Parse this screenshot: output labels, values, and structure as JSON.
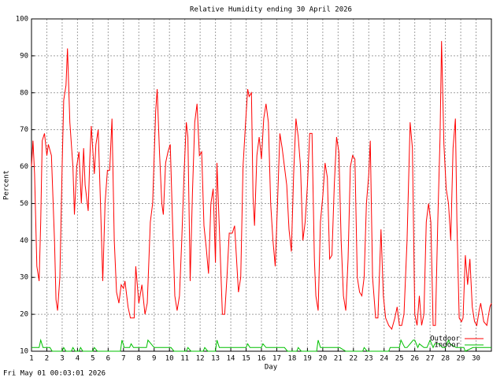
{
  "chart_data": {
    "type": "line",
    "title": "Relative Humidity ending 30 April 2026",
    "xlabel": "Day",
    "ylabel": "Percent",
    "footer": "Fri May 01 00:03:01 2026",
    "xlim": [
      1,
      31
    ],
    "xticks": [
      1,
      2,
      3,
      4,
      5,
      6,
      7,
      8,
      9,
      10,
      11,
      12,
      13,
      14,
      15,
      16,
      17,
      18,
      19,
      20,
      21,
      22,
      23,
      24,
      25,
      26,
      27,
      28,
      29,
      30
    ],
    "ylim": [
      10,
      100
    ],
    "yticks": [
      10,
      20,
      30,
      40,
      50,
      60,
      70,
      80,
      90,
      100
    ],
    "grid": true,
    "legend": "lower right",
    "series": [
      {
        "name": "Outdoor",
        "color": "#ff0000",
        "x": [
          1.0,
          1.1,
          1.2,
          1.35,
          1.5,
          1.6,
          1.7,
          1.85,
          2.0,
          2.1,
          2.3,
          2.5,
          2.6,
          2.7,
          2.85,
          3.0,
          3.1,
          3.25,
          3.35,
          3.5,
          3.7,
          3.8,
          3.95,
          4.1,
          4.25,
          4.4,
          4.5,
          4.7,
          4.8,
          4.9,
          5.1,
          5.2,
          5.35,
          5.5,
          5.65,
          5.8,
          5.95,
          6.1,
          6.25,
          6.4,
          6.55,
          6.7,
          6.85,
          7.0,
          7.1,
          7.3,
          7.45,
          7.7,
          7.8,
          8.0,
          8.2,
          8.4,
          8.55,
          8.75,
          8.9,
          9.1,
          9.2,
          9.35,
          9.5,
          9.6,
          9.75,
          9.9,
          10.05,
          10.2,
          10.35,
          10.5,
          10.65,
          10.8,
          10.95,
          11.1,
          11.2,
          11.35,
          11.5,
          11.65,
          11.8,
          11.95,
          12.1,
          12.25,
          12.4,
          12.55,
          12.7,
          12.85,
          13.0,
          13.1,
          13.3,
          13.45,
          13.6,
          13.75,
          13.9,
          14.1,
          14.25,
          14.4,
          14.5,
          14.65,
          14.8,
          14.95,
          15.1,
          15.2,
          15.35,
          15.45,
          15.55,
          15.7,
          15.85,
          16.0,
          16.15,
          16.3,
          16.45,
          16.6,
          16.75,
          16.9,
          17.05,
          17.2,
          17.35,
          17.5,
          17.65,
          17.8,
          17.95,
          18.1,
          18.25,
          18.4,
          18.55,
          18.7,
          18.85,
          19.0,
          19.15,
          19.3,
          19.45,
          19.55,
          19.7,
          19.85,
          20.0,
          20.15,
          20.3,
          20.45,
          20.6,
          20.75,
          20.9,
          21.05,
          21.2,
          21.35,
          21.5,
          21.65,
          21.8,
          21.95,
          22.1,
          22.25,
          22.4,
          22.55,
          22.7,
          22.85,
          23.0,
          23.1,
          23.25,
          23.45,
          23.6,
          23.8,
          23.95,
          24.1,
          24.3,
          24.5,
          24.7,
          24.85,
          25.0,
          25.15,
          25.3,
          25.5,
          25.7,
          25.85,
          26.0,
          26.15,
          26.3,
          26.45,
          26.6,
          26.75,
          26.9,
          27.05,
          27.2,
          27.35,
          27.5,
          27.65,
          27.75,
          27.9,
          28.05,
          28.2,
          28.35,
          28.5,
          28.65,
          28.75,
          28.9,
          29.05,
          29.15,
          29.3,
          29.45,
          29.6,
          29.75,
          29.9,
          30.05,
          30.2,
          30.3,
          30.5,
          30.7,
          30.9,
          31.0
        ],
        "values": [
          60,
          67,
          58,
          33,
          29,
          45,
          67,
          69,
          63,
          66,
          63,
          40,
          24,
          21,
          30,
          60,
          78,
          82,
          92,
          72,
          60,
          47,
          60,
          64,
          50,
          65,
          55,
          48,
          62,
          71,
          58,
          66,
          70,
          50,
          29,
          50,
          59,
          59,
          73,
          40,
          26,
          23,
          28,
          27,
          29,
          22,
          19,
          19,
          33,
          23,
          28,
          20,
          23,
          45,
          50,
          75,
          81,
          64,
          50,
          47,
          61,
          64,
          66,
          45,
          25,
          21,
          25,
          40,
          58,
          72,
          68,
          29,
          53,
          72,
          77,
          63,
          64,
          44,
          38,
          31,
          50,
          54,
          34,
          61,
          38,
          20,
          20,
          30,
          42,
          42,
          44,
          33,
          26,
          30,
          60,
          71,
          81,
          79,
          80,
          52,
          44,
          63,
          68,
          62,
          73,
          77,
          72,
          50,
          40,
          33,
          50,
          69,
          65,
          60,
          55,
          43,
          37,
          58,
          73,
          68,
          60,
          40,
          45,
          55,
          69,
          69,
          35,
          25,
          21,
          45,
          52,
          61,
          57,
          35,
          36,
          55,
          68,
          64,
          40,
          25,
          21,
          35,
          60,
          63,
          62,
          30,
          26,
          25,
          30,
          50,
          58,
          67,
          30,
          19,
          19,
          43,
          25,
          19,
          17,
          16,
          19,
          22,
          17,
          17,
          20,
          40,
          72,
          65,
          20,
          17,
          25,
          17,
          20,
          45,
          50,
          45,
          17,
          17,
          45,
          68,
          94,
          66,
          54,
          50,
          40,
          65,
          73,
          45,
          19,
          18,
          19,
          36,
          28,
          35,
          22,
          18,
          17,
          21,
          23,
          18,
          17,
          22,
          23
        ]
      },
      {
        "name": "Indoor",
        "color": "#00c000",
        "x": [
          1.0,
          1.5,
          1.6,
          1.75,
          2.1,
          2.2,
          2.35,
          3.0,
          3.1,
          3.25,
          3.6,
          3.7,
          3.85,
          4.1,
          4.2,
          4.35,
          5.0,
          5.1,
          5.3,
          6.8,
          6.9,
          7.05,
          7.4,
          7.5,
          7.65,
          8.5,
          8.6,
          8.8,
          9.0,
          9.2,
          10.0,
          10.1,
          10.3,
          11.1,
          11.2,
          11.4,
          12.2,
          12.3,
          12.5,
          13.0,
          13.1,
          13.25,
          15.0,
          15.1,
          15.25,
          16.0,
          16.1,
          16.3,
          17.4,
          17.5,
          17.7,
          18.3,
          18.4,
          18.6,
          19.6,
          19.7,
          19.85,
          21.0,
          21.1,
          21.5,
          22.6,
          22.7,
          22.9,
          24.3,
          24.4,
          24.8,
          25.0,
          25.1,
          25.35,
          25.5,
          25.9,
          26.0,
          26.2,
          26.3,
          26.6,
          26.8,
          27.0,
          27.2,
          27.3,
          27.6,
          27.8,
          28.0,
          28.2,
          28.3,
          28.7,
          29.2,
          29.3,
          29.8,
          30.0,
          31.0
        ],
        "values": [
          11,
          11,
          13,
          11,
          11,
          11,
          10,
          10,
          11,
          10,
          10,
          11,
          10,
          10,
          11,
          10,
          10,
          11,
          10,
          10,
          13,
          11,
          11,
          12,
          11,
          11,
          13,
          12,
          11,
          11,
          11,
          11,
          10,
          10,
          11,
          10,
          10,
          11,
          10,
          10,
          13,
          11,
          11,
          12,
          11,
          11,
          12,
          11,
          11,
          11,
          10,
          10,
          11,
          10,
          10,
          13,
          11,
          11,
          11,
          10,
          10,
          11,
          10,
          10,
          11,
          11,
          11,
          13,
          11,
          11,
          13,
          13,
          11,
          12,
          11,
          11,
          13,
          11,
          12,
          12,
          11,
          11,
          13,
          12,
          11,
          11,
          10,
          11,
          11,
          11
        ]
      }
    ]
  }
}
